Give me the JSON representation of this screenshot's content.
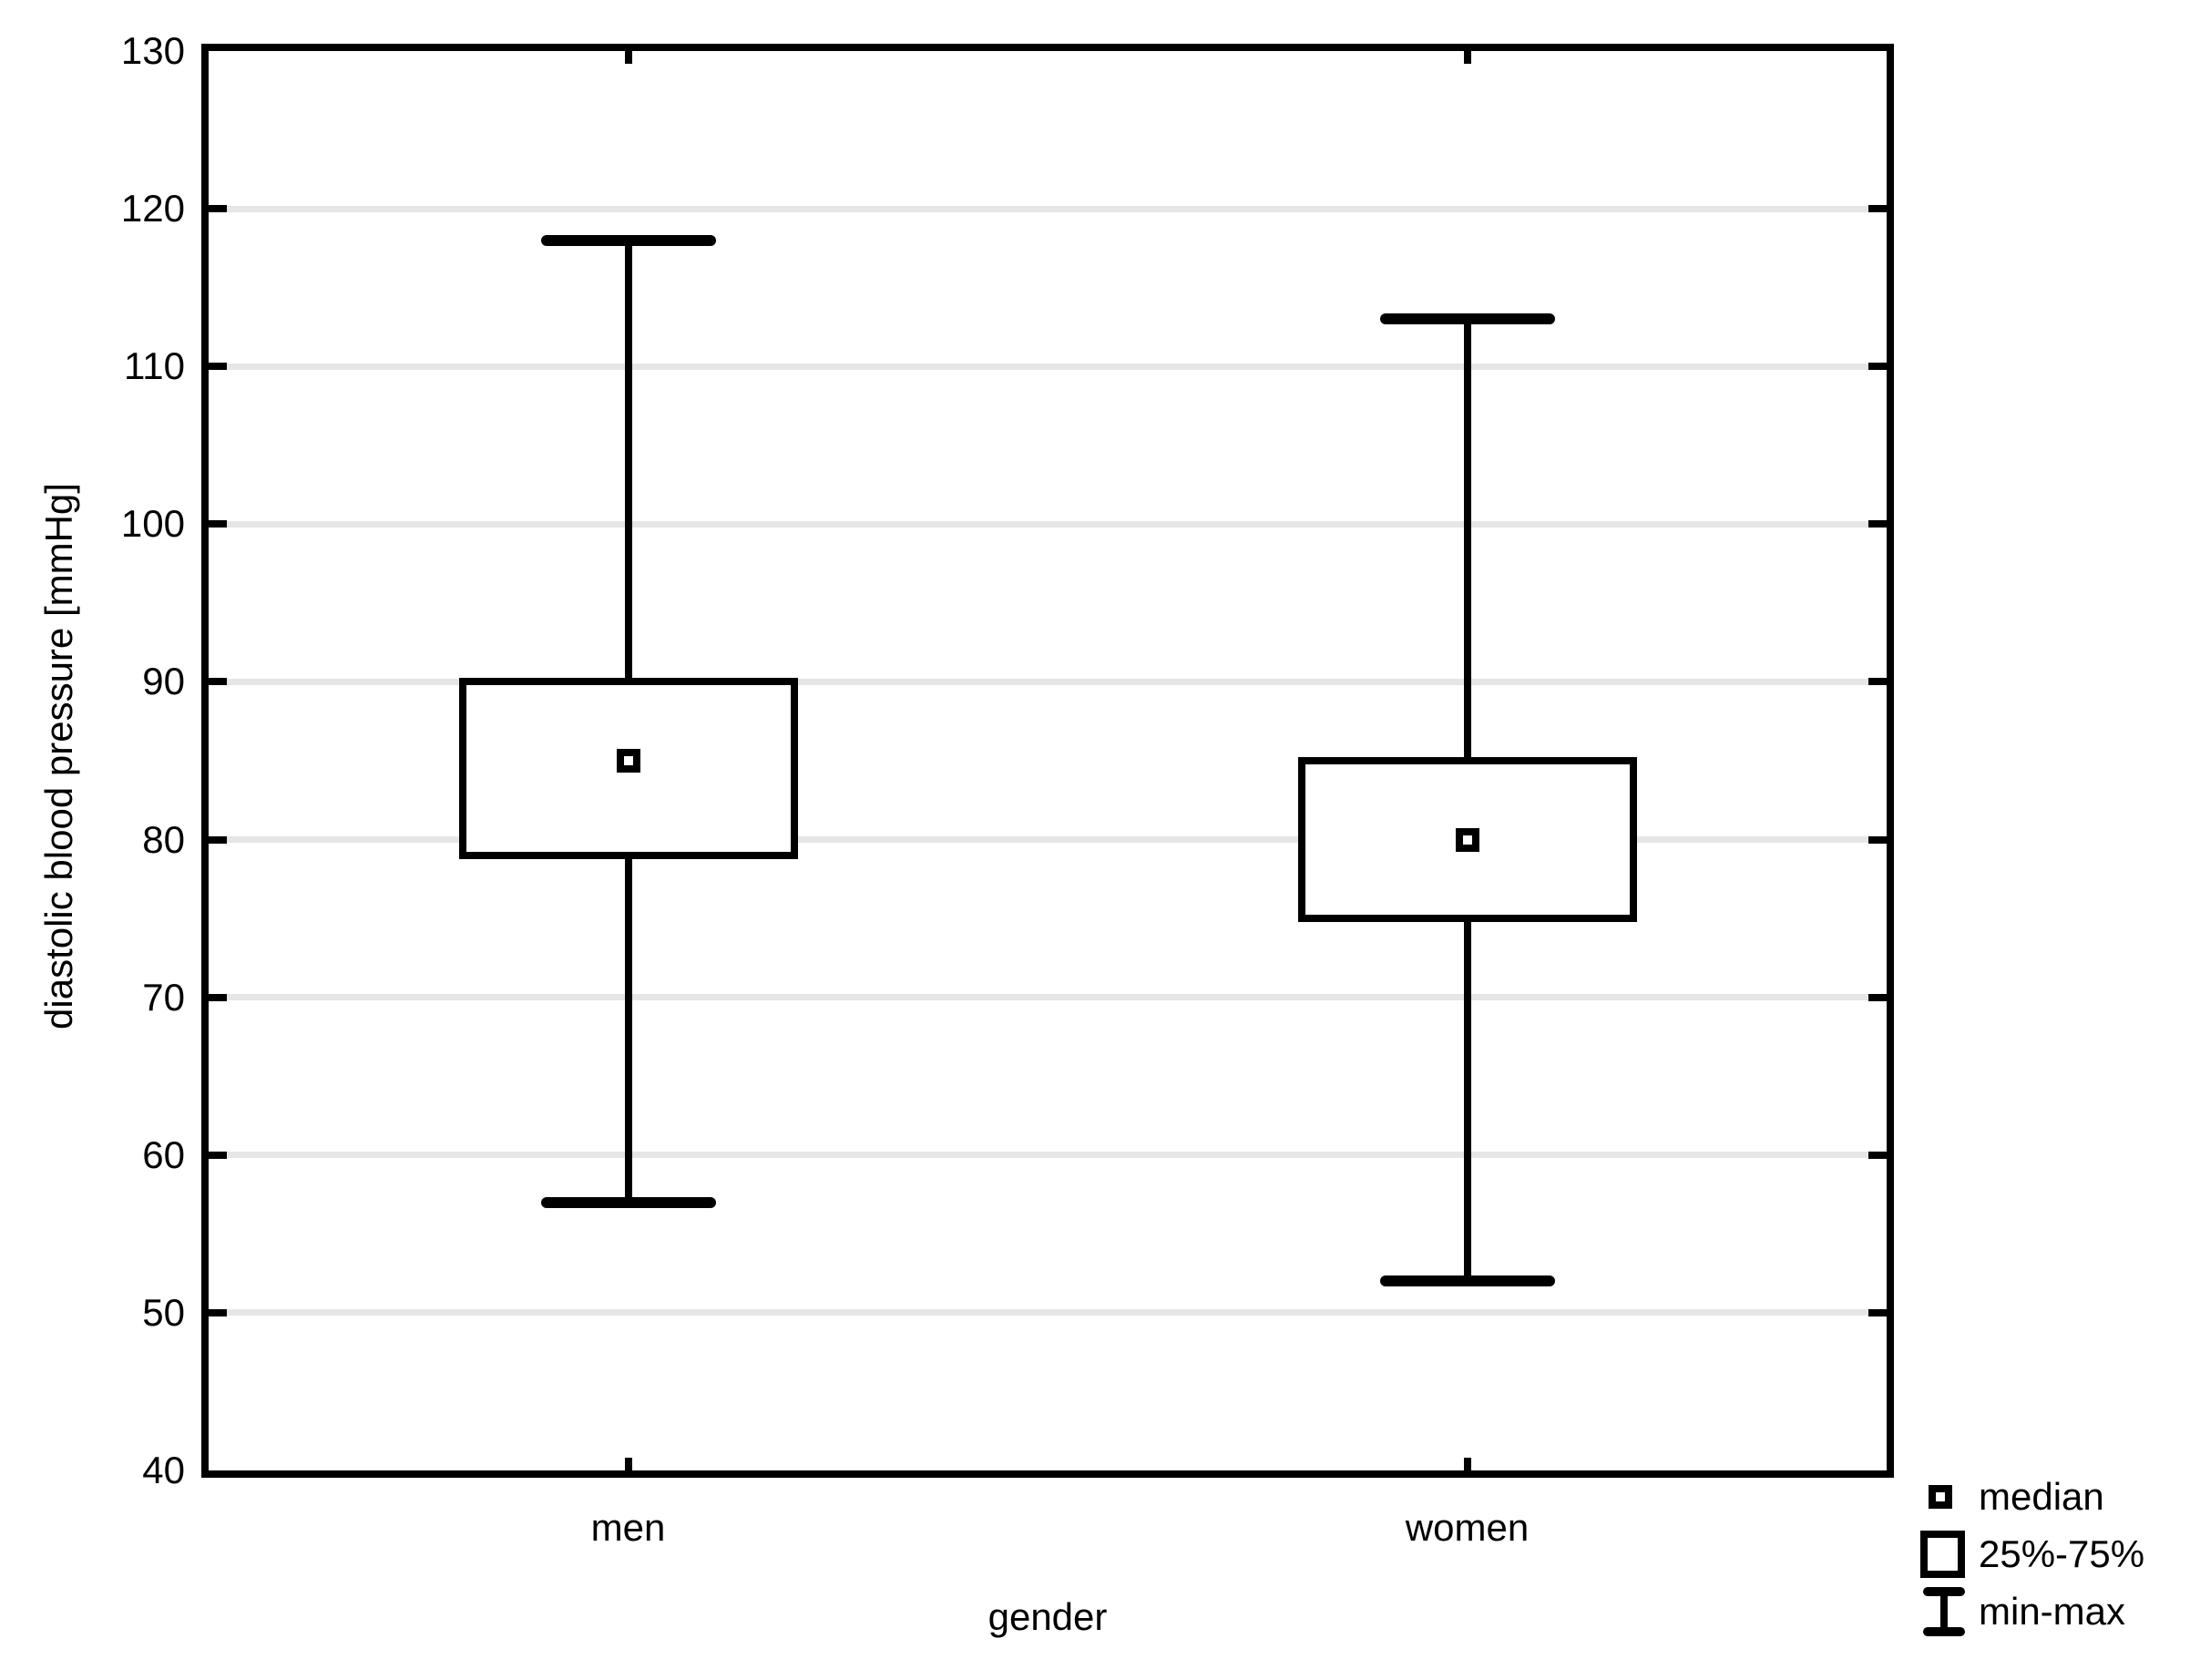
{
  "chart_data": {
    "type": "box",
    "xlabel": "gender",
    "ylabel": "diastolic blood pressure [mmHg]",
    "ylim": [
      40,
      130
    ],
    "ytick_step": 10,
    "ytick_labels": [
      "40",
      "50",
      "60",
      "70",
      "80",
      "90",
      "100",
      "110",
      "120",
      "130"
    ],
    "grid": "horizontal",
    "legend_position": "bottom-right",
    "categories": [
      "men",
      "women"
    ],
    "series": [
      {
        "name": "men",
        "min": 57,
        "q1": 79,
        "median": 85,
        "q3": 90,
        "max": 118
      },
      {
        "name": "women",
        "min": 52,
        "q1": 75,
        "median": 80,
        "q3": 85,
        "max": 113
      }
    ],
    "legend": [
      {
        "symbol": "median-marker",
        "label": "median"
      },
      {
        "symbol": "iqr-box",
        "label": "25%-75%"
      },
      {
        "symbol": "min-max-whisker",
        "label": "min-max"
      }
    ]
  },
  "colors": {
    "ink": "#000000",
    "grid": "#e6e6e6",
    "background": "#ffffff"
  }
}
